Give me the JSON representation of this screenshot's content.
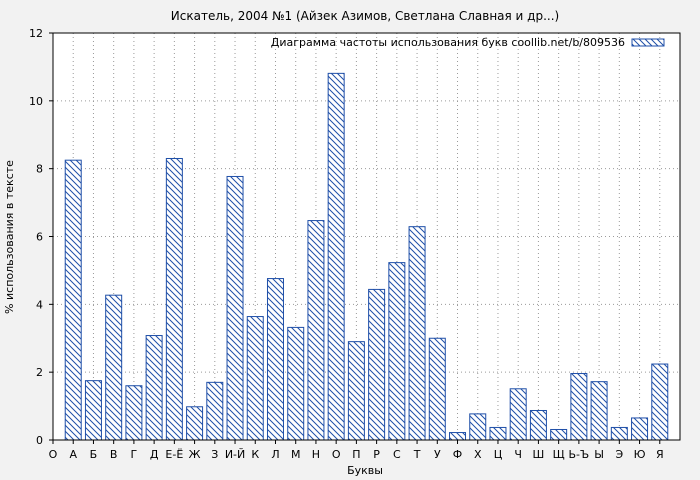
{
  "chart_data": {
    "type": "bar",
    "title": "Искатель, 2004 №1 (Айзек Азимов, Светлана Славная и др...)",
    "xlabel": "Буквы",
    "ylabel": "% использования в тексте",
    "ylim": [
      0,
      12
    ],
    "yticks": [
      "0",
      "2",
      "4",
      "6",
      "8",
      "10",
      "12"
    ],
    "grid": true,
    "legend": {
      "placement": "top-right"
    },
    "categories": [
      "О",
      "А",
      "Б",
      "В",
      "Г",
      "Д",
      "Е-Ё",
      "Ж",
      "З",
      "И-Й",
      "К",
      "Л",
      "М",
      "Н",
      "О",
      "П",
      "Р",
      "С",
      "Т",
      "У",
      "Ф",
      "Х",
      "Ц",
      "Ч",
      "Ш",
      "Щ",
      "Ь-Ъ",
      "Ы",
      "Э",
      "Ю",
      "Я"
    ],
    "series": [
      {
        "name": "Диаграмма частоты использования букв coollib.net/b/809536",
        "color": "#1f4fa8",
        "values": [
          null,
          8.25,
          1.75,
          4.27,
          1.6,
          3.08,
          8.3,
          0.98,
          1.7,
          7.77,
          3.64,
          4.76,
          3.32,
          6.47,
          10.81,
          2.9,
          4.44,
          5.23,
          6.29,
          3.0,
          0.22,
          0.77,
          0.37,
          1.51,
          0.87,
          0.31,
          1.96,
          1.72,
          0.37,
          0.65,
          2.24
        ]
      }
    ]
  }
}
